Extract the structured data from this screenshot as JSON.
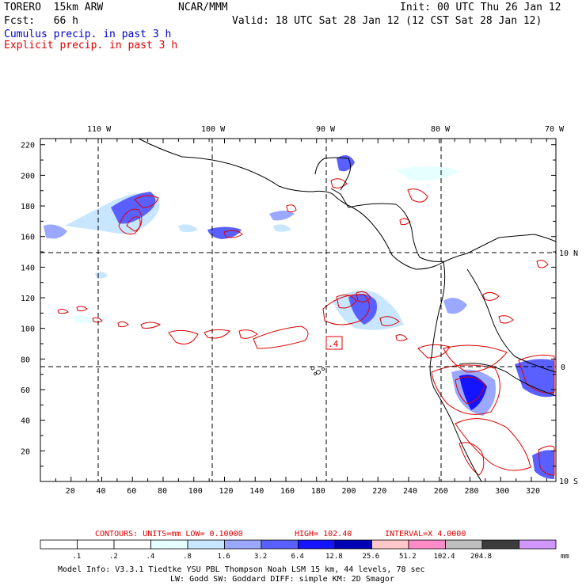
{
  "header": {
    "model": "TORERO  15km ARW",
    "org": "NCAR/MMM",
    "init": "Init: 00 UTC Thu 26 Jan 12",
    "fcst": "Fcst:   66 h",
    "valid": "Valid: 18 UTC Sat 28 Jan 12 (12 CST Sat 28 Jan 12)",
    "legend_cumulus": "Cumulus precip. in past 3 h",
    "legend_explicit": "Explicit precip. in past 3 h"
  },
  "colors": {
    "cumulus": "#0000cc",
    "explicit": "#dd0000",
    "coast": "#000000"
  },
  "axes": {
    "x_ticks": [
      "20",
      "40",
      "60",
      "80",
      "100",
      "120",
      "140",
      "160",
      "180",
      "200",
      "220",
      "240",
      "260",
      "280",
      "300",
      "320"
    ],
    "y_ticks": [
      "20",
      "40",
      "60",
      "80",
      "100",
      "120",
      "140",
      "160",
      "180",
      "200",
      "220"
    ],
    "lon_labels": [
      "110 W",
      "100 W",
      "90 W",
      "80 W",
      "70 W"
    ],
    "lat_labels": [
      "10 N",
      "0",
      "10 S"
    ]
  },
  "box_label": ".4",
  "contours_info": {
    "label": "CONTOURS:  UNITS=mm  LOW= 0.10000",
    "high": "HIGH=  102.40",
    "interval": "INTERVAL=X  4.0000"
  },
  "colorbar": {
    "labels": [
      ".1",
      ".2",
      ".4",
      ".8",
      "1.6",
      "3.2",
      "6.4",
      "12.8",
      "25.6",
      "51.2",
      "102.4",
      "204.8"
    ],
    "unit": "mm",
    "colors": [
      "#ffffff",
      "#ffffff",
      "#ffffff",
      "#e6ffff",
      "#c8e6ff",
      "#9aa8ff",
      "#5a60ff",
      "#1414ff",
      "#0000b4",
      "#ffc8c8",
      "#ff8cc8",
      "#bebebe",
      "#3c3c3c",
      "#d296ff"
    ]
  },
  "footer": {
    "line1": "Model Info: V3.3.1    Tiedtke YSU PBL  Thompson    Noah LSM  15 km,   44 levels,   78 sec",
    "line2": "LW: Godd SW: Goddard DIFF: simple KM: 2D Smagor"
  }
}
